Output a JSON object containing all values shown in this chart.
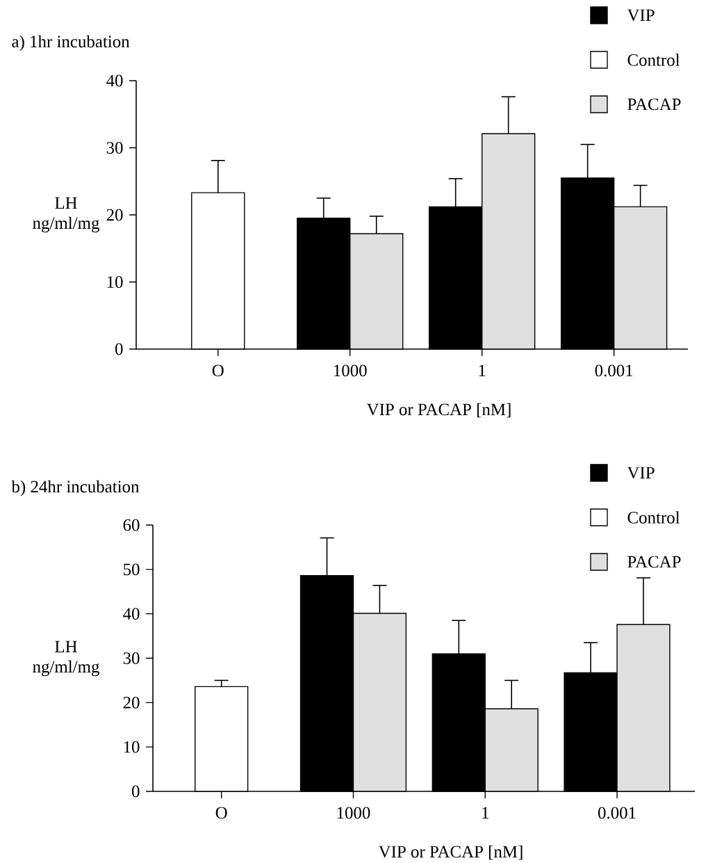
{
  "chart_data": [
    {
      "type": "bar",
      "title": "a) 1hr incubation",
      "xlabel": "VIP or PACAP [nM]",
      "ylabel": "LH ng/ml/mg",
      "categories": [
        "O",
        "1000",
        "1",
        "0.001"
      ],
      "series": [
        {
          "name": "VIP",
          "color": "#000000",
          "values": [
            null,
            19.5,
            21.2,
            25.5
          ],
          "errors": [
            null,
            [
              19.5,
              22.5
            ],
            [
              21.2,
              25.4
            ],
            [
              25.5,
              30.5
            ]
          ]
        },
        {
          "name": "Control",
          "color": "#ffffff",
          "values": [
            23.3,
            null,
            null,
            null
          ],
          "errors": [
            [
              23.3,
              28.1
            ],
            null,
            null,
            null
          ]
        },
        {
          "name": "PACAP",
          "color": "#e0e0e0",
          "values": [
            null,
            17.2,
            32.1,
            21.2
          ],
          "errors": [
            null,
            [
              17.2,
              19.8
            ],
            [
              32.1,
              37.6
            ],
            [
              21.2,
              24.4
            ]
          ]
        }
      ],
      "ylim": [
        0,
        40
      ],
      "yticks": [
        0,
        10,
        20,
        30,
        40
      ],
      "legend": "top right"
    },
    {
      "type": "bar",
      "title": "b) 24hr incubation",
      "xlabel": "VIP or PACAP [nM]",
      "ylabel": "LH ng/ml/mg",
      "categories": [
        "O",
        "1000",
        "1",
        "0.001"
      ],
      "series": [
        {
          "name": "VIP",
          "color": "#000000",
          "values": [
            null,
            48.6,
            31.0,
            26.7
          ],
          "errors": [
            null,
            [
              48.6,
              57.1
            ],
            [
              31.0,
              38.5
            ],
            [
              26.7,
              33.5
            ]
          ]
        },
        {
          "name": "Control",
          "color": "#ffffff",
          "values": [
            23.6,
            null,
            null,
            null
          ],
          "errors": [
            [
              23.6,
              25.0
            ],
            null,
            null,
            null
          ]
        },
        {
          "name": "PACAP",
          "color": "#e0e0e0",
          "values": [
            null,
            40.1,
            18.6,
            37.6
          ],
          "errors": [
            null,
            [
              40.1,
              46.4
            ],
            [
              18.6,
              25.0
            ],
            [
              37.6,
              48.1
            ]
          ]
        }
      ],
      "ylim": [
        0,
        60
      ],
      "yticks": [
        0,
        10,
        20,
        30,
        40,
        50,
        60
      ],
      "legend": "top right"
    }
  ]
}
